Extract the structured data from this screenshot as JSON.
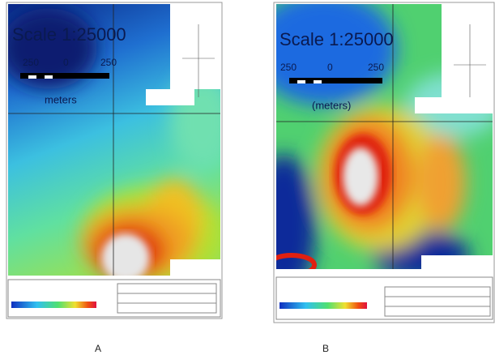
{
  "panels": [
    {
      "label": "A",
      "scale": "Scale 1:25000",
      "scale_ticks": [
        "250",
        "0",
        "250"
      ],
      "unit": "meters"
    },
    {
      "label": "B",
      "scale": "Scale 1:25000",
      "scale_ticks": [
        "250",
        "0",
        "250"
      ],
      "unit": "(meters)"
    }
  ]
}
